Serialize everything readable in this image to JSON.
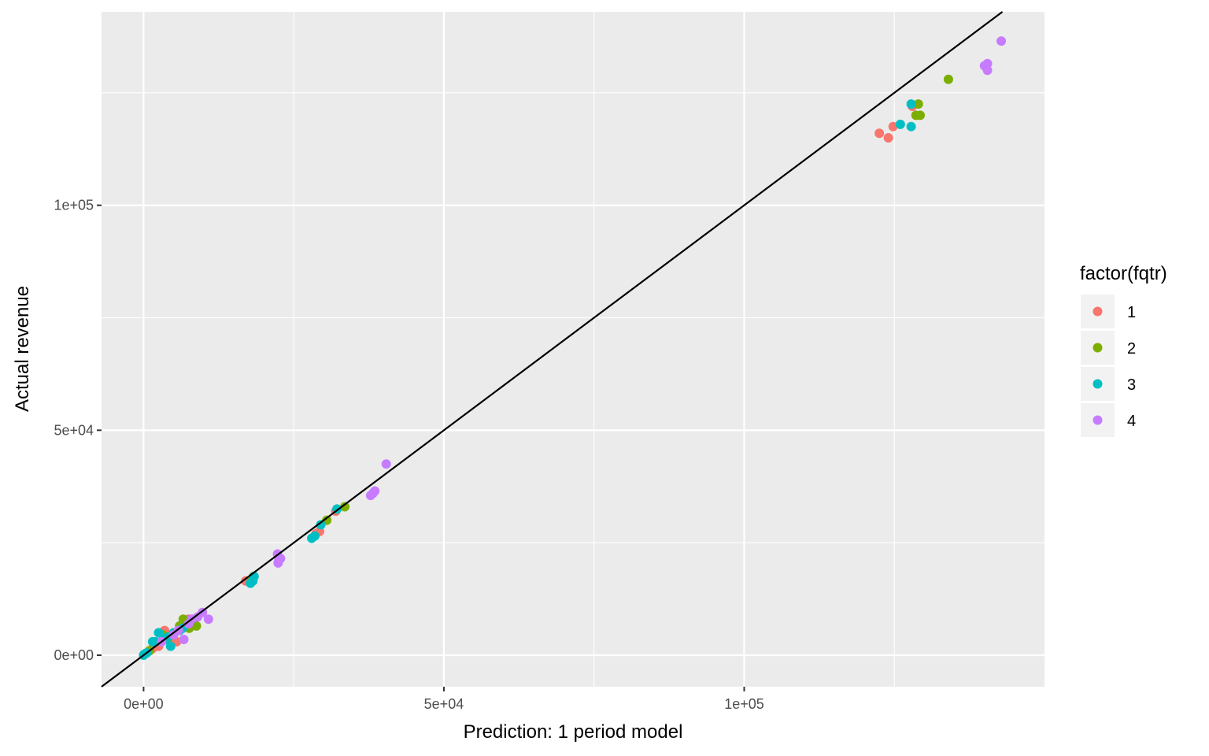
{
  "chart_data": {
    "type": "scatter",
    "title": "",
    "xlabel": "Prediction: 1 period model",
    "ylabel": "Actual revenue",
    "xlim": [
      -7000,
      150000
    ],
    "ylim": [
      -7000,
      143000
    ],
    "x_ticks": [
      {
        "value": 0,
        "label": "0e+00"
      },
      {
        "value": 50000,
        "label": "5e+04"
      },
      {
        "value": 100000,
        "label": "1e+05"
      }
    ],
    "y_ticks": [
      {
        "value": 0,
        "label": "0e+00"
      },
      {
        "value": 50000,
        "label": "5e+04"
      },
      {
        "value": 100000,
        "label": "1e+05"
      }
    ],
    "x_minor_breaks": [
      25000,
      75000,
      125000
    ],
    "y_minor_breaks": [
      25000,
      75000,
      125000
    ],
    "grid": true,
    "panel_background": "#ebebeb",
    "grid_color": "#ffffff",
    "reference_line": {
      "type": "identity",
      "slope": 1,
      "intercept": 0,
      "color": "#000000"
    },
    "legend": {
      "title": "factor(fqtr)",
      "placement": "right",
      "entries": [
        {
          "label": "1",
          "color": "#F8766D"
        },
        {
          "label": "2",
          "color": "#7CAE00"
        },
        {
          "label": "3",
          "color": "#00BFC4"
        },
        {
          "label": "4",
          "color": "#C77CFF"
        }
      ]
    },
    "series": [
      {
        "name": "1",
        "color": "#F8766D",
        "points": [
          [
            122500,
            116000
          ],
          [
            124000,
            115000
          ],
          [
            124800,
            117500
          ],
          [
            128000,
            122000
          ],
          [
            32000,
            32000
          ],
          [
            29300,
            27500
          ],
          [
            28700,
            27000
          ],
          [
            17000,
            16500
          ],
          [
            8000,
            7500
          ],
          [
            7500,
            8000
          ],
          [
            6500,
            6500
          ],
          [
            5500,
            3000
          ],
          [
            4000,
            4500
          ],
          [
            3500,
            5500
          ],
          [
            3000,
            5000
          ],
          [
            2500,
            2000
          ],
          [
            2000,
            2500
          ],
          [
            1500,
            1500
          ],
          [
            1000,
            1000
          ]
        ]
      },
      {
        "name": "2",
        "color": "#7CAE00",
        "points": [
          [
            134000,
            128000
          ],
          [
            129000,
            122500
          ],
          [
            128600,
            120000
          ],
          [
            129300,
            120000
          ],
          [
            33500,
            33000
          ],
          [
            30500,
            30000
          ],
          [
            18300,
            17500
          ],
          [
            18000,
            16500
          ],
          [
            8800,
            6500
          ],
          [
            8400,
            7000
          ],
          [
            7600,
            6000
          ],
          [
            6600,
            8000
          ],
          [
            6000,
            6500
          ],
          [
            4000,
            3500
          ],
          [
            3200,
            4500
          ],
          [
            1000,
            1000
          ],
          [
            500,
            500
          ]
        ]
      },
      {
        "name": "3",
        "color": "#00BFC4",
        "points": [
          [
            127800,
            122500
          ],
          [
            126000,
            118000
          ],
          [
            127800,
            117500
          ],
          [
            32200,
            32500
          ],
          [
            29500,
            29000
          ],
          [
            28500,
            26500
          ],
          [
            28000,
            26000
          ],
          [
            18400,
            17500
          ],
          [
            18200,
            16500
          ],
          [
            17800,
            16000
          ],
          [
            6500,
            6000
          ],
          [
            6000,
            5500
          ],
          [
            5000,
            5000
          ],
          [
            4500,
            2000
          ],
          [
            4000,
            4000
          ],
          [
            3500,
            3500
          ],
          [
            2500,
            5000
          ],
          [
            2000,
            3000
          ],
          [
            1500,
            3000
          ],
          [
            500,
            500
          ],
          [
            100,
            200
          ],
          [
            0,
            0
          ]
        ]
      },
      {
        "name": "4",
        "color": "#C77CFF",
        "points": [
          [
            142800,
            136500
          ],
          [
            140500,
            131500
          ],
          [
            140000,
            131000
          ],
          [
            140500,
            130000
          ],
          [
            40400,
            42500
          ],
          [
            38500,
            36500
          ],
          [
            38200,
            36000
          ],
          [
            37800,
            35500
          ],
          [
            22300,
            22500
          ],
          [
            22800,
            21500
          ],
          [
            22500,
            21000
          ],
          [
            22400,
            20500
          ],
          [
            10800,
            8000
          ],
          [
            9800,
            9500
          ],
          [
            9000,
            8500
          ],
          [
            8000,
            8000
          ],
          [
            7500,
            7000
          ],
          [
            6700,
            3500
          ],
          [
            5800,
            5500
          ],
          [
            5000,
            4500
          ],
          [
            3000,
            3000
          ]
        ]
      }
    ]
  }
}
